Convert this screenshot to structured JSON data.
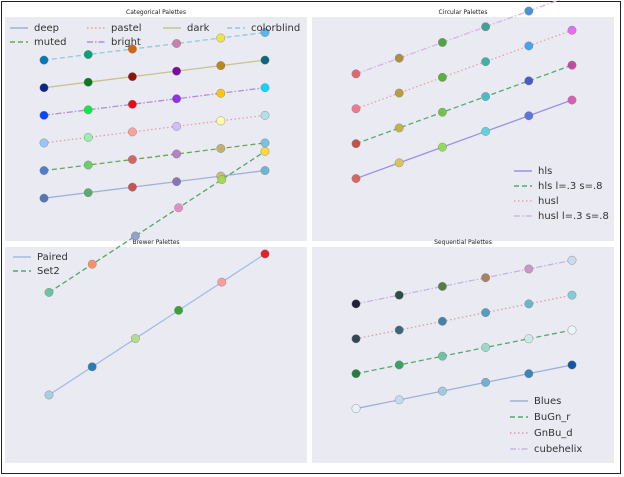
{
  "figure": {
    "background": "#ffffff",
    "panel_background": "#eaeaf2"
  },
  "chart_data": [
    {
      "id": "categorical",
      "type": "line",
      "title": "Categorical Palettes",
      "xlim": [
        0,
        5
      ],
      "ylim": [
        -0.5,
        5.8
      ],
      "legend": {
        "placement": "top",
        "columns": 4
      },
      "grid": false,
      "x": [
        0,
        1,
        2,
        3,
        4,
        5
      ],
      "series": [
        {
          "name": "deep",
          "style": "solid",
          "line_color": "#9fb2d4",
          "offset": 0,
          "colors": [
            "#4c72b0",
            "#55a868",
            "#c44e52",
            "#8172b2",
            "#ccb974",
            "#64b5cd"
          ]
        },
        {
          "name": "muted",
          "style": "dashed",
          "line_color": "#6aa84f",
          "offset": 1,
          "colors": [
            "#4878cf",
            "#6acc65",
            "#d65f5f",
            "#b47cc7",
            "#c4ad66",
            "#77bedb"
          ]
        },
        {
          "name": "pastel",
          "style": "dotted",
          "line_color": "#e6a0a0",
          "offset": 2,
          "colors": [
            "#92c6ff",
            "#97f0aa",
            "#ff9f9a",
            "#d0bbff",
            "#fffea3",
            "#b0e0e6"
          ]
        },
        {
          "name": "bright",
          "style": "dashdot",
          "line_color": "#b58fd0",
          "offset": 3,
          "colors": [
            "#003fff",
            "#03ed3a",
            "#e8000b",
            "#8a2be2",
            "#ffc400",
            "#00d7ff"
          ]
        },
        {
          "name": "dark",
          "style": "solid",
          "line_color": "#c9c38a",
          "offset": 4,
          "colors": [
            "#001c7f",
            "#017517",
            "#8c0900",
            "#7600a1",
            "#b8860b",
            "#006374"
          ]
        },
        {
          "name": "colorblind",
          "style": "dashed",
          "line_color": "#8ec9e0",
          "offset": 5,
          "colors": [
            "#0072b2",
            "#009e73",
            "#d55e00",
            "#cc79a7",
            "#f0e442",
            "#56b4e9"
          ]
        }
      ]
    },
    {
      "id": "circular",
      "type": "line",
      "title": "Circular Palettes",
      "xlim": [
        0,
        5
      ],
      "ylim": [
        -0.5,
        4.2
      ],
      "legend": {
        "placement": "lower right",
        "columns": 1
      },
      "grid": false,
      "x": [
        0,
        1,
        2,
        3,
        4,
        5
      ],
      "series": [
        {
          "name": "hls",
          "style": "solid",
          "line_color": "#9d8fe6",
          "offset": 0,
          "colors": [
            "#db5f57",
            "#dbc257",
            "#91db57",
            "#57d3db",
            "#5770db",
            "#db57b2"
          ]
        },
        {
          "name": "hls l=.3 s=.8",
          "style": "dashed",
          "line_color": "#4fae6a",
          "offset": 1,
          "colors": [
            "#c44a42",
            "#c4b042",
            "#6dc442",
            "#42bcc4",
            "#4255c4",
            "#c442a0"
          ]
        },
        {
          "name": "husl",
          "style": "dotted",
          "line_color": "#e6a3a3",
          "offset": 2,
          "colors": [
            "#f77189",
            "#bb9832",
            "#50b131",
            "#36ada4",
            "#3ba3ec",
            "#e866f4"
          ]
        },
        {
          "name": "husl l=.3 s=.8",
          "style": "dashdot",
          "line_color": "#d6b4e6",
          "offset": 3,
          "colors": [
            "#e1616c",
            "#a88c3c",
            "#4c9f3a",
            "#3a9d91",
            "#3f8fd1",
            "#d35ce1"
          ]
        }
      ]
    },
    {
      "id": "brewer",
      "type": "line",
      "title": "Brewer Palettes",
      "xlim": [
        0,
        5
      ],
      "ylim": [
        -0.8,
        3.1
      ],
      "legend": {
        "placement": "top-left",
        "columns": 1
      },
      "grid": false,
      "x": [
        0,
        1,
        2,
        3,
        4,
        5
      ],
      "series": [
        {
          "name": "Paired",
          "style": "solid",
          "line_color": "#a6bde0",
          "offset": 0,
          "colors": [
            "#a6cee3",
            "#1f78b4",
            "#b2df8a",
            "#33a02c",
            "#fb9a99",
            "#e31a1c"
          ]
        },
        {
          "name": "Set2",
          "style": "dashed",
          "line_color": "#55a868",
          "offset": 2,
          "colors": [
            "#66c2a5",
            "#fc8d62",
            "#8da0cb",
            "#e78ac3",
            "#a6d854",
            "#ffd92f"
          ]
        }
      ]
    },
    {
      "id": "sequential",
      "type": "line",
      "title": "Sequential Palettes",
      "xlim": [
        0,
        5
      ],
      "ylim": [
        -0.5,
        4.2
      ],
      "legend": {
        "placement": "lower right",
        "columns": 1
      },
      "grid": false,
      "x": [
        0,
        1,
        2,
        3,
        4,
        5
      ],
      "series": [
        {
          "name": "Blues",
          "style": "solid",
          "line_color": "#9fb2d4",
          "offset": 0,
          "colors": [
            "#eaf2fb",
            "#c6dbef",
            "#9ecae1",
            "#6baed6",
            "#3182bd",
            "#08519c"
          ]
        },
        {
          "name": "BuGn_r",
          "style": "dashed",
          "line_color": "#55a868",
          "offset": 1,
          "colors": [
            "#1b7837",
            "#2ca25f",
            "#66c2a4",
            "#99d8c9",
            "#ccece6",
            "#edf8fb"
          ]
        },
        {
          "name": "GnBu_d",
          "style": "dotted",
          "line_color": "#d9a0a0",
          "offset": 2,
          "colors": [
            "#2c3e50",
            "#34607a",
            "#3b7fa0",
            "#4a9cba",
            "#64b4c8",
            "#7ecbd4"
          ]
        },
        {
          "name": "cubehelix",
          "style": "dashdot",
          "line_color": "#c9b3e6",
          "offset": 3,
          "colors": [
            "#1a1530",
            "#1f4a3b",
            "#4a7a3a",
            "#a67d5f",
            "#c794c9",
            "#c9dbf0"
          ]
        }
      ]
    }
  ]
}
